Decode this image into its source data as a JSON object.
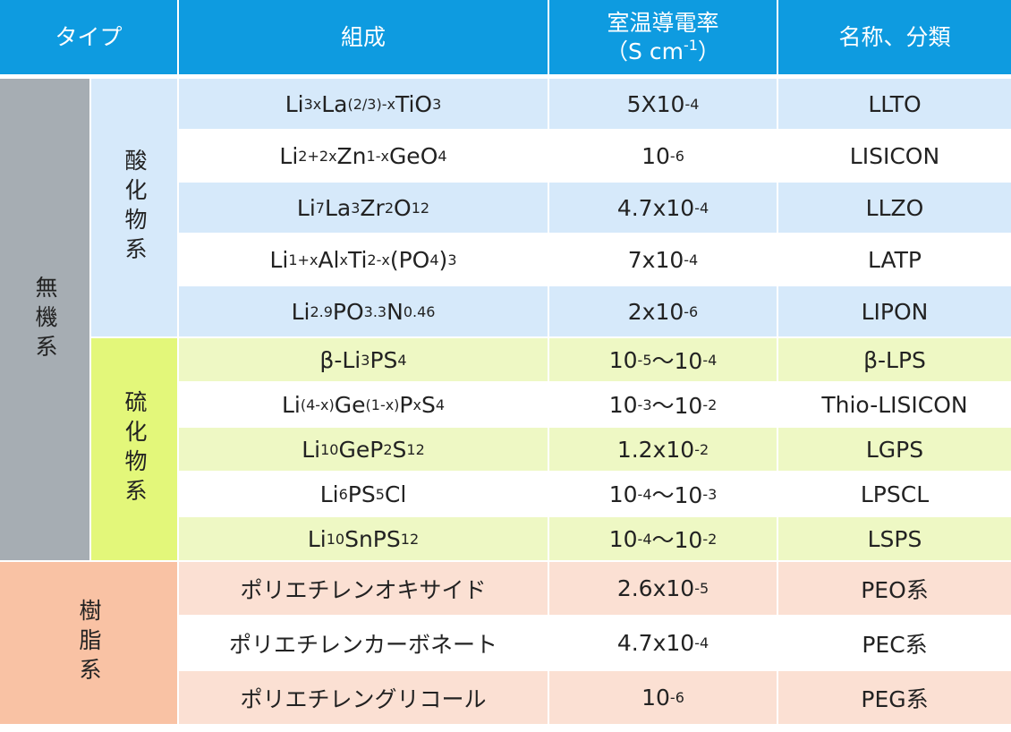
{
  "header": {
    "type": "タイプ",
    "composition": "組成",
    "conductivity": {
      "line1": "室温導電率",
      "line2": [
        {
          "text": "（S cm"
        },
        {
          "text": "-1",
          "sup": true
        },
        {
          "text": "）"
        }
      ]
    },
    "name": "名称、分類"
  },
  "groups": [
    {
      "label": "無機系",
      "subgroups": [
        {
          "label": "酸化物系",
          "rows": [
            {
              "composition": [
                {
                  "text": "Li"
                },
                {
                  "text": "3x",
                  "sub": true
                },
                {
                  "text": "La"
                },
                {
                  "text": "(2/3)-x",
                  "sub": true
                },
                {
                  "text": "TiO"
                },
                {
                  "text": "3",
                  "sub": true
                }
              ],
              "conductivity": [
                {
                  "text": "5X10"
                },
                {
                  "text": "-4",
                  "sup": true
                }
              ],
              "name": "LLTO"
            },
            {
              "composition": [
                {
                  "text": "Li"
                },
                {
                  "text": "2+2x",
                  "sub": true
                },
                {
                  "text": "Zn"
                },
                {
                  "text": "1-x",
                  "sub": true
                },
                {
                  "text": "GeO"
                },
                {
                  "text": "4",
                  "sub": true
                }
              ],
              "conductivity": [
                {
                  "text": "10"
                },
                {
                  "text": "-6",
                  "sup": true
                }
              ],
              "name": "LISICON"
            },
            {
              "composition": [
                {
                  "text": "Li"
                },
                {
                  "text": "7",
                  "sub": true
                },
                {
                  "text": "La"
                },
                {
                  "text": "3",
                  "sub": true
                },
                {
                  "text": "Zr"
                },
                {
                  "text": "2",
                  "sub": true
                },
                {
                  "text": "O"
                },
                {
                  "text": "12",
                  "sub": true
                }
              ],
              "conductivity": [
                {
                  "text": "4.7x10"
                },
                {
                  "text": "-4",
                  "sup": true
                }
              ],
              "name": "LLZO"
            },
            {
              "composition": [
                {
                  "text": "Li"
                },
                {
                  "text": "1+x",
                  "sub": true
                },
                {
                  "text": "Al"
                },
                {
                  "text": "x",
                  "sub": true
                },
                {
                  "text": "Ti"
                },
                {
                  "text": "2-x",
                  "sub": true
                },
                {
                  "text": "(PO"
                },
                {
                  "text": "4",
                  "sub": true
                },
                {
                  "text": ")"
                },
                {
                  "text": "3",
                  "sub": true
                }
              ],
              "conductivity": [
                {
                  "text": "7x10"
                },
                {
                  "text": "-4",
                  "sup": true
                }
              ],
              "name": "LATP"
            },
            {
              "composition": [
                {
                  "text": "Li"
                },
                {
                  "text": "2.9",
                  "sub": true
                },
                {
                  "text": "PO"
                },
                {
                  "text": "3.3",
                  "sub": true
                },
                {
                  "text": "N"
                },
                {
                  "text": "0.46",
                  "sub": true
                }
              ],
              "conductivity": [
                {
                  "text": "2x10"
                },
                {
                  "text": "-6",
                  "sup": true
                }
              ],
              "name": "LIPON"
            }
          ]
        },
        {
          "label": "硫化物系",
          "rows": [
            {
              "composition": [
                {
                  "text": "β-Li"
                },
                {
                  "text": "3",
                  "sub": true
                },
                {
                  "text": "PS"
                },
                {
                  "text": "4",
                  "sub": true
                }
              ],
              "conductivity": [
                {
                  "text": "10"
                },
                {
                  "text": "-5",
                  "sup": true
                },
                {
                  "text": "～10"
                },
                {
                  "text": "-4",
                  "sup": true
                }
              ],
              "name": "β-LPS"
            },
            {
              "composition": [
                {
                  "text": "Li"
                },
                {
                  "text": "(4-x)",
                  "sub": true
                },
                {
                  "text": "Ge"
                },
                {
                  "text": "(1-x)",
                  "sub": true
                },
                {
                  "text": "P"
                },
                {
                  "text": "x",
                  "sub": true
                },
                {
                  "text": "S"
                },
                {
                  "text": "4",
                  "sub": true
                }
              ],
              "conductivity": [
                {
                  "text": "10"
                },
                {
                  "text": "-3",
                  "sup": true
                },
                {
                  "text": "～10"
                },
                {
                  "text": "-2",
                  "sup": true
                }
              ],
              "name": "Thio-LISICON"
            },
            {
              "composition": [
                {
                  "text": "Li"
                },
                {
                  "text": "10",
                  "sub": true
                },
                {
                  "text": "GeP"
                },
                {
                  "text": "2",
                  "sub": true
                },
                {
                  "text": "S"
                },
                {
                  "text": "12",
                  "sub": true
                }
              ],
              "conductivity": [
                {
                  "text": "1.2x10"
                },
                {
                  "text": "-2",
                  "sup": true
                }
              ],
              "name": "LGPS"
            },
            {
              "composition": [
                {
                  "text": "Li"
                },
                {
                  "text": "6",
                  "sub": true
                },
                {
                  "text": "PS"
                },
                {
                  "text": "5",
                  "sub": true
                },
                {
                  "text": "Cl"
                }
              ],
              "conductivity": [
                {
                  "text": "10"
                },
                {
                  "text": "-4",
                  "sup": true
                },
                {
                  "text": "～10"
                },
                {
                  "text": "-3",
                  "sup": true
                }
              ],
              "name": "LPSCL"
            },
            {
              "composition": [
                {
                  "text": "Li"
                },
                {
                  "text": "10",
                  "sub": true
                },
                {
                  "text": "SnPS"
                },
                {
                  "text": "12",
                  "sub": true
                }
              ],
              "conductivity": [
                {
                  "text": "10"
                },
                {
                  "text": "-4",
                  "sup": true
                },
                {
                  "text": "～10"
                },
                {
                  "text": "-2",
                  "sup": true
                }
              ],
              "name": "LSPS"
            }
          ]
        }
      ]
    },
    {
      "label": "樹脂系",
      "rows": [
        {
          "composition": [
            {
              "text": "ポリエチレンオキサイド"
            }
          ],
          "conductivity": [
            {
              "text": "2.6x10"
            },
            {
              "text": "-5",
              "sup": true
            }
          ],
          "name": "PEO系"
        },
        {
          "composition": [
            {
              "text": "ポリエチレンカーボネート"
            }
          ],
          "conductivity": [
            {
              "text": "4.7x10"
            },
            {
              "text": "-4",
              "sup": true
            }
          ],
          "name": "PEC系"
        },
        {
          "composition": [
            {
              "text": "ポリエチレングリコール"
            }
          ],
          "conductivity": [
            {
              "text": "10"
            },
            {
              "text": "-6",
              "sup": true
            }
          ],
          "name": "PEG系"
        }
      ]
    }
  ]
}
